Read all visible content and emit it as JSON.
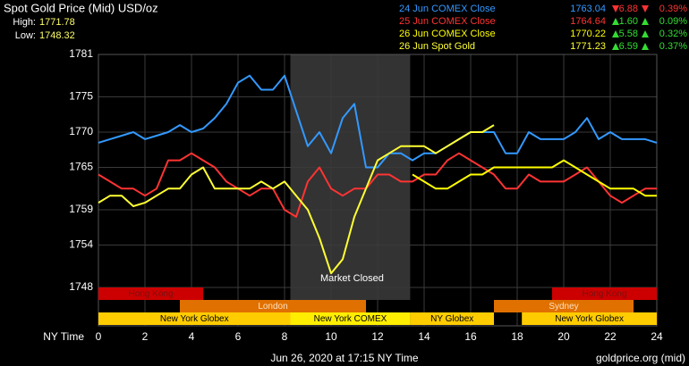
{
  "chart_data": {
    "type": "line",
    "title": "Spot Gold Price (Mid) USD/oz",
    "high_label": "High:",
    "high": 1771.78,
    "low_label": "Low:",
    "low": 1748.32,
    "x_label": "NY Time",
    "footer": "Jun 26, 2020 at 17:15 NY Time",
    "source": "goldprice.org (mid)",
    "xlim": [
      0,
      24
    ],
    "xticks": [
      0,
      2,
      4,
      6,
      8,
      10,
      12,
      14,
      16,
      18,
      20,
      22,
      24
    ],
    "ylim": [
      1748,
      1781
    ],
    "yticks": [
      1748,
      1754,
      1759,
      1765,
      1770,
      1775,
      1781
    ],
    "grid": true,
    "closed": {
      "label": "Market Closed",
      "start": 8.25,
      "end": 13.4
    },
    "sessions": [
      [
        {
          "label": "Hong Kong",
          "start": 0,
          "end": 4.5,
          "color": "#cc0000"
        },
        {
          "label": "Hong Kong",
          "start": 19.5,
          "end": 24,
          "color": "#cc0000"
        }
      ],
      [
        {
          "label": "London",
          "start": 3.5,
          "end": 11.5,
          "color": "#e07000"
        },
        {
          "label": "Sydney",
          "start": 17,
          "end": 23,
          "color": "#e07000"
        }
      ],
      [
        {
          "label": "New York Globex",
          "start": 0,
          "end": 8.25,
          "color": "#ffcc00"
        },
        {
          "label": "New York COMEX",
          "start": 8.25,
          "end": 13.4,
          "color": "#ffee00"
        },
        {
          "label": "NY Globex",
          "start": 13.4,
          "end": 17,
          "color": "#ffcc00"
        },
        {
          "label": "New York Globex",
          "start": 18.2,
          "end": 24,
          "color": "#ffcc00"
        }
      ]
    ],
    "x": [
      0,
      0.5,
      1,
      1.5,
      2,
      2.5,
      3,
      3.5,
      4,
      4.5,
      5,
      5.5,
      6,
      6.5,
      7,
      7.5,
      8,
      8.5,
      9,
      9.5,
      10,
      10.5,
      11,
      11.5,
      12,
      12.5,
      13,
      13.5,
      14,
      14.5,
      15,
      15.5,
      16,
      16.5,
      17,
      17.5,
      18,
      18.5,
      19,
      19.5,
      20,
      20.5,
      21,
      21.5,
      22,
      22.5,
      23,
      23.5,
      24
    ],
    "series": [
      {
        "name": "24 Jun COMEX Close",
        "color": "#3399ff",
        "close": 1763.04,
        "change": -6.88,
        "change_label": "6.88",
        "pct": -0.39,
        "pct_label": "0.39%",
        "values": [
          1768.5,
          1769,
          1769.5,
          1770,
          1769,
          1769.5,
          1770,
          1771,
          1770,
          1770.5,
          1772,
          1774,
          1777,
          1778,
          1776,
          1776,
          1778,
          1773,
          1768,
          1770,
          1767,
          1772,
          1774,
          1765,
          1765,
          1767,
          1767,
          1766,
          1767,
          1767,
          1768,
          1769,
          1770,
          1770,
          1770,
          1767,
          1767,
          1770,
          1769,
          1769,
          1769,
          1770,
          1772,
          1769,
          1770,
          1769,
          1769,
          1769,
          1768.5
        ]
      },
      {
        "name": "25 Jun COMEX Close",
        "color": "#ff3333",
        "close": 1764.64,
        "change": 1.6,
        "change_label": "1.60",
        "pct": 0.09,
        "pct_label": "0.09%",
        "values": [
          1764,
          1763,
          1762,
          1762,
          1761,
          1762,
          1766,
          1766,
          1767,
          1766,
          1765,
          1763,
          1762,
          1761,
          1762,
          1762,
          1759,
          1758,
          1763,
          1765,
          1762,
          1761,
          1762,
          1762,
          1764,
          1764,
          1763,
          1763,
          1764,
          1764,
          1766,
          1767,
          1766,
          1765,
          1764,
          1762,
          1762,
          1764,
          1763,
          1763,
          1763,
          1764,
          1765,
          1763,
          1761,
          1760,
          1761,
          1762,
          1762
        ]
      },
      {
        "name": "26 Jun COMEX Close",
        "color": "#ffff00",
        "close": 1770.22,
        "change": 5.58,
        "change_label": "5.58",
        "pct": 0.32,
        "pct_label": "0.32%",
        "values": [
          null,
          null,
          null,
          null,
          null,
          null,
          null,
          null,
          null,
          null,
          null,
          null,
          null,
          null,
          null,
          null,
          null,
          null,
          null,
          null,
          null,
          null,
          null,
          null,
          null,
          null,
          null,
          1764,
          1763,
          1762,
          1762,
          1763,
          1764,
          1764,
          1765,
          1765,
          1765,
          1765,
          1765,
          1765,
          1766,
          1765,
          1764,
          1763,
          1762,
          1762,
          1762,
          1761,
          1761
        ]
      },
      {
        "name": "26 Jun Spot Gold",
        "color": "#ffff33",
        "close": 1771.23,
        "change": 6.59,
        "change_label": "6.59",
        "pct": 0.37,
        "pct_label": "0.37%",
        "values": [
          1760,
          1761,
          1761,
          1759.5,
          1760,
          1761,
          1762,
          1762,
          1764,
          1765,
          1762,
          1762,
          1762,
          1762,
          1763,
          1762,
          1763,
          1761,
          1759,
          1755,
          1750,
          1752,
          1758,
          1762,
          1766,
          1767,
          1768,
          1768,
          1768,
          1767,
          1768,
          1769,
          1770,
          1770,
          1771,
          null,
          null,
          null,
          null,
          null,
          null,
          null,
          null,
          null,
          null,
          null,
          null,
          null,
          null
        ]
      }
    ]
  }
}
